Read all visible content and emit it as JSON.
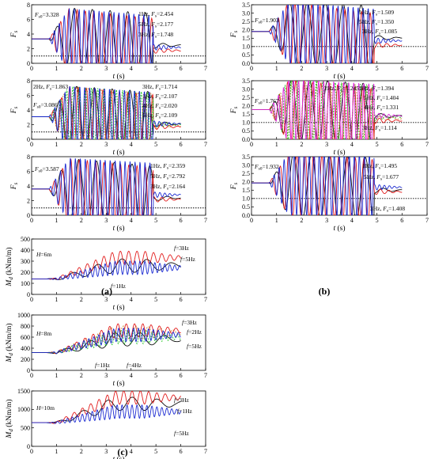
{
  "panel_labels": {
    "a": "(a)",
    "b": "(b)",
    "c": "(c)"
  },
  "chart_data": [
    {
      "id": "a1",
      "type": "line",
      "ylabel": "F",
      "ylabel_sub": "s",
      "xlabel": "t (s)",
      "xlim": [
        0,
        7
      ],
      "ylim": [
        0,
        8
      ],
      "xticks": [
        "0",
        "1",
        "2",
        "3",
        "4",
        "5",
        "6",
        "7"
      ],
      "yticks": [
        "0",
        "2",
        "4",
        "6",
        "8"
      ],
      "reference_line": 1.0,
      "annotations": [
        "Fs0=3.328",
        "1Hz, Fs=2.454",
        "5Hz, Fs=2.177",
        "3Hz, Fs=1.748"
      ],
      "series": [
        {
          "name": "1Hz",
          "color": "#000000",
          "freq": 1,
          "final": 2.454
        },
        {
          "name": "3Hz",
          "color": "#e01010",
          "freq": 3,
          "final": 1.748
        },
        {
          "name": "5Hz",
          "color": "#1020d0",
          "freq": 5,
          "final": 2.177
        }
      ],
      "start": 3.328
    },
    {
      "id": "a2",
      "type": "line",
      "ylabel": "F",
      "ylabel_sub": "s",
      "xlabel": "t (s)",
      "xlim": [
        0,
        7
      ],
      "ylim": [
        0,
        8
      ],
      "xticks": [
        "0",
        "1",
        "2",
        "3",
        "4",
        "5",
        "6",
        "7"
      ],
      "yticks": [
        "0",
        "2",
        "4",
        "6",
        "8"
      ],
      "reference_line": 1.0,
      "annotations": [
        "2Hz, Fs=1.863",
        "Fs0=3.086",
        "3Hz, Fs=1.714",
        "1Hz, Fs=2.107",
        "4Hz, Fs=2.020",
        "5Hz, Fs=2.109"
      ],
      "series": [
        {
          "name": "1Hz",
          "color": "#000000",
          "freq": 1,
          "final": 2.107
        },
        {
          "name": "2Hz",
          "color": "#c08020",
          "freq": 2,
          "final": 1.863
        },
        {
          "name": "3Hz",
          "color": "#e01010",
          "freq": 3,
          "final": 1.714
        },
        {
          "name": "4Hz",
          "color": "#10c010",
          "freq": 4,
          "final": 2.02
        },
        {
          "name": "5Hz",
          "color": "#1020d0",
          "freq": 5,
          "final": 2.109
        }
      ],
      "start": 3.086
    },
    {
      "id": "a3",
      "type": "line",
      "ylabel": "F",
      "ylabel_sub": "s",
      "xlabel": "t (s)",
      "xlim": [
        0,
        7
      ],
      "ylim": [
        0,
        8
      ],
      "xticks": [
        "0",
        "1",
        "2",
        "3",
        "4",
        "5",
        "6",
        "7"
      ],
      "yticks": [
        "0",
        "2",
        "4",
        "6",
        "8"
      ],
      "reference_line": 1.0,
      "annotations": [
        "Fs0=3.587",
        "1Hz, Fs=2.359",
        "5Hz, Fs=2.792",
        "3Hz, Fs=2.164"
      ],
      "series": [
        {
          "name": "1Hz",
          "color": "#000000",
          "freq": 1,
          "final": 2.359
        },
        {
          "name": "3Hz",
          "color": "#e01010",
          "freq": 3,
          "final": 2.164
        },
        {
          "name": "5Hz",
          "color": "#1020d0",
          "freq": 5,
          "final": 2.792
        }
      ],
      "start": 3.587
    },
    {
      "id": "b1",
      "type": "line",
      "ylabel": "F",
      "ylabel_sub": "s",
      "xlabel": "t (s)",
      "xlim": [
        0,
        7
      ],
      "ylim": [
        0,
        3.5
      ],
      "xticks": [
        "0",
        "1",
        "2",
        "3",
        "4",
        "5",
        "6",
        "7"
      ],
      "yticks": [
        "0.0",
        "0.5",
        "1.0",
        "1.5",
        "2.0",
        "2.5",
        "3.0",
        "3.5"
      ],
      "reference_line": 1.0,
      "annotations": [
        "Fs0=1.903",
        "1Hz, Fs=1.509",
        "5Hz, Fs=1.350",
        "3Hz, Fs=1.085"
      ],
      "series": [
        {
          "name": "1Hz",
          "color": "#000000",
          "freq": 1,
          "final": 1.509
        },
        {
          "name": "3Hz",
          "color": "#e01010",
          "freq": 3,
          "final": 1.085
        },
        {
          "name": "5Hz",
          "color": "#1020d0",
          "freq": 5,
          "final": 1.35
        }
      ],
      "start": 1.903
    },
    {
      "id": "b2",
      "type": "line",
      "ylabel": "F",
      "ylabel_sub": "s",
      "xlabel": "t (s)",
      "xlim": [
        0,
        7
      ],
      "ylim": [
        0,
        3.5
      ],
      "xticks": [
        "0",
        "1",
        "2",
        "3",
        "4",
        "5",
        "6",
        "7"
      ],
      "yticks": [
        "0.0",
        "0.5",
        "1.0",
        "1.5",
        "2.0",
        "2.5",
        "3.0",
        "3.5"
      ],
      "reference_line": 1.0,
      "annotations": [
        "Fs0=1.767",
        "2Hz, Fs=1.245",
        "1Hz, Fs=1.394",
        "5Hz, Fs=1.404",
        "4Hz, Fs=1.331",
        "3Hz, Fs=1.114"
      ],
      "series": [
        {
          "name": "1Hz",
          "color": "#000000",
          "freq": 1,
          "final": 1.394
        },
        {
          "name": "2Hz",
          "color": "#c08020",
          "freq": 2,
          "final": 1.245
        },
        {
          "name": "3Hz",
          "color": "#e01010",
          "freq": 3,
          "final": 1.114
        },
        {
          "name": "4Hz",
          "color": "#10c010",
          "freq": 4,
          "final": 1.331
        },
        {
          "name": "5Hz",
          "color": "#e020e0",
          "freq": 5,
          "final": 1.404
        }
      ],
      "start": 1.767
    },
    {
      "id": "b3",
      "type": "line",
      "ylabel": "F",
      "ylabel_sub": "s",
      "xlabel": "t (s)",
      "xlim": [
        0,
        7
      ],
      "ylim": [
        0,
        3.5
      ],
      "xticks": [
        "0",
        "1",
        "2",
        "3",
        "4",
        "5",
        "6",
        "7"
      ],
      "yticks": [
        "0.0",
        "0.5",
        "1.0",
        "1.5",
        "2.0",
        "2.5",
        "3.0",
        "3.5"
      ],
      "reference_line": 1.0,
      "annotations": [
        "Fs0=1.932",
        "1Hz, Fs=1.495",
        "5Hz, Fs=1.677",
        "3Hz, Fs=1.408"
      ],
      "series": [
        {
          "name": "1Hz",
          "color": "#000000",
          "freq": 1,
          "final": 1.495
        },
        {
          "name": "3Hz",
          "color": "#e01010",
          "freq": 3,
          "final": 1.408
        },
        {
          "name": "5Hz",
          "color": "#1020d0",
          "freq": 5,
          "final": 1.677
        }
      ],
      "start": 1.932
    },
    {
      "id": "c1",
      "type": "line",
      "ylabel": "M",
      "ylabel_sub": "d",
      "ylabel_unit": " (kNm/m)",
      "xlabel": "t (s)",
      "xlim": [
        0,
        7
      ],
      "ylim": [
        0,
        500
      ],
      "xticks": [
        "0",
        "1",
        "2",
        "3",
        "4",
        "5",
        "6",
        "7"
      ],
      "yticks": [
        "0",
        "100",
        "200",
        "300",
        "400",
        "500"
      ],
      "annotations": [
        "H=6m",
        "f=3Hz",
        "f=5Hz",
        "f=1Hz"
      ],
      "series": [
        {
          "name": "f=1Hz",
          "color": "#000000",
          "freq": 1,
          "final": 260
        },
        {
          "name": "f=3Hz",
          "color": "#e01010",
          "freq": 3,
          "final": 330
        },
        {
          "name": "f=5Hz",
          "color": "#1020d0",
          "freq": 5,
          "final": 240
        }
      ],
      "start": 140
    },
    {
      "id": "c2",
      "type": "line",
      "ylabel": "M",
      "ylabel_sub": "d",
      "ylabel_unit": " (kNm/m)",
      "xlabel": "t (s)",
      "xlim": [
        0,
        7
      ],
      "ylim": [
        0,
        1000
      ],
      "xticks": [
        "0",
        "1",
        "2",
        "3",
        "4",
        "5",
        "6",
        "7"
      ],
      "yticks": [
        "0",
        "200",
        "400",
        "600",
        "800",
        "1000"
      ],
      "annotations": [
        "H=8m",
        "f=3Hz",
        "f=2Hz",
        "f=5Hz",
        "f=1Hz",
        "f=4Hz"
      ],
      "series": [
        {
          "name": "f=1Hz",
          "color": "#000000",
          "freq": 1,
          "final": 560
        },
        {
          "name": "f=2Hz",
          "color": "#c08020",
          "freq": 2,
          "final": 680
        },
        {
          "name": "f=3Hz",
          "color": "#e01010",
          "freq": 3,
          "final": 720
        },
        {
          "name": "f=4Hz",
          "color": "#10c010",
          "freq": 4,
          "final": 600
        },
        {
          "name": "f=5Hz",
          "color": "#1020d0",
          "freq": 5,
          "final": 640
        }
      ],
      "start": 320
    },
    {
      "id": "c3",
      "type": "line",
      "ylabel": "M",
      "ylabel_sub": "d",
      "ylabel_unit": " (kNm/m)",
      "xlabel": "t (s)",
      "xlim": [
        0,
        7
      ],
      "ylim": [
        0,
        1500
      ],
      "xticks": [
        "0",
        "1",
        "2",
        "3",
        "4",
        "5",
        "6",
        "7"
      ],
      "yticks": [
        "0",
        "500",
        "1000",
        "1500"
      ],
      "annotations": [
        "H=10m",
        "f=3Hz",
        "f=1Hz",
        "f=5Hz"
      ],
      "series": [
        {
          "name": "f=1Hz",
          "color": "#000000",
          "freq": 1,
          "final": 1150
        },
        {
          "name": "f=3Hz",
          "color": "#e01010",
          "freq": 3,
          "final": 1320
        },
        {
          "name": "f=5Hz",
          "color": "#1020d0",
          "freq": 5,
          "final": 940
        }
      ],
      "start": 640
    }
  ]
}
